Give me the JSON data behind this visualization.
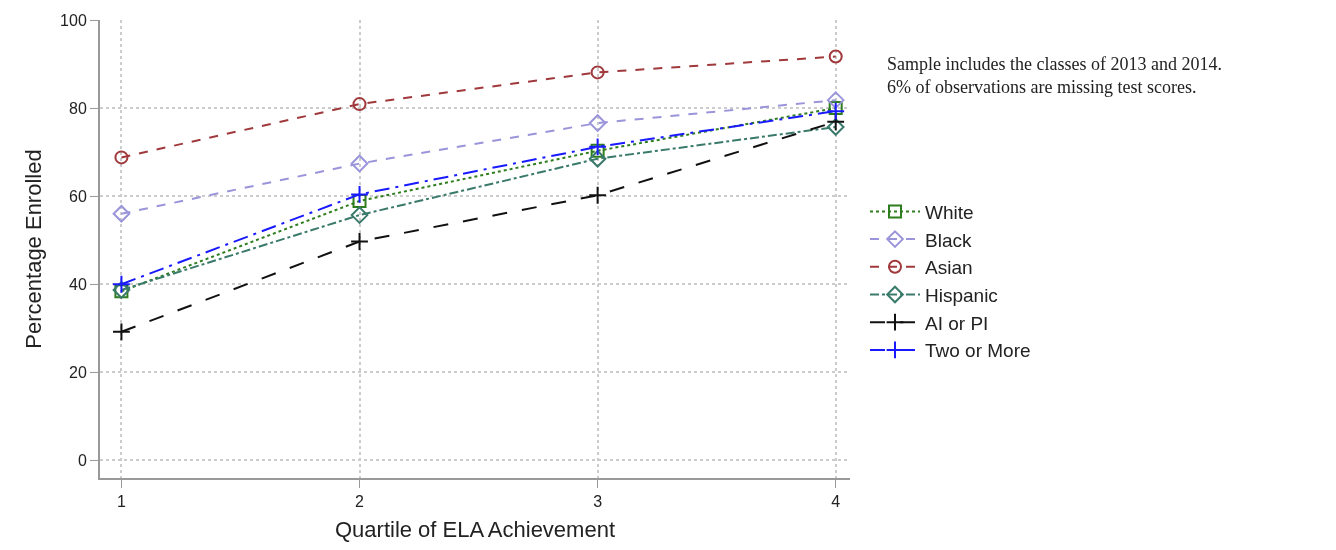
{
  "chart_data": {
    "type": "line",
    "xlabel": "Quartile of ELA Achievement",
    "ylabel": "Percentage Enrolled",
    "x": [
      1,
      2,
      3,
      4
    ],
    "xlim": [
      0.91,
      4.06
    ],
    "xticks": [
      1,
      2,
      3,
      4
    ],
    "ylim": [
      -4,
      100
    ],
    "yticks": [
      0,
      20,
      40,
      60,
      80,
      100
    ],
    "grid": true,
    "legend": "right",
    "annotations": [
      "Sample includes the classes of 2013 and 2014.\n6% of observations are missing test scores."
    ],
    "series": [
      {
        "name": "White",
        "color": "#2e7d1e",
        "values": [
          38.4,
          58.9,
          70.3,
          80.0
        ],
        "marker": "square",
        "line_style": "dotted"
      },
      {
        "name": "Black",
        "color": "#9a94da",
        "values": [
          56.0,
          67.4,
          76.6,
          81.8
        ],
        "marker": "diamond",
        "line_style": "dashed"
      },
      {
        "name": "Asian",
        "color": "#a0393c",
        "values": [
          68.8,
          80.9,
          88.1,
          91.7
        ],
        "marker": "circle",
        "line_style": "dashed"
      },
      {
        "name": "Hispanic",
        "color": "#3a7a6a",
        "values": [
          38.7,
          55.7,
          68.5,
          75.7
        ],
        "marker": "diamond",
        "line_style": "dashed"
      },
      {
        "name": "AI or PI",
        "color": "#111111",
        "values": [
          29.2,
          49.7,
          60.2,
          76.9
        ],
        "marker": "cross",
        "line_style": "dashed"
      },
      {
        "name": "Two or More",
        "color": "#1a1aff",
        "values": [
          40.0,
          60.4,
          71.2,
          79.3
        ],
        "marker": "cross",
        "line_style": "dashed"
      }
    ]
  }
}
